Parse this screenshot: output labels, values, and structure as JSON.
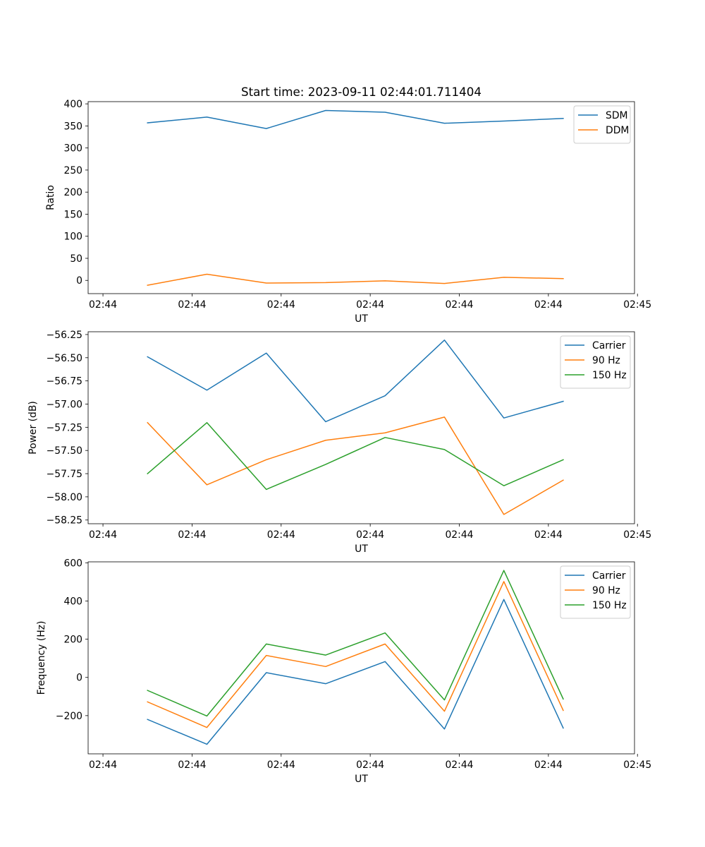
{
  "chart_data": [
    {
      "type": "line",
      "title": "Start time: 2023-09-11 02:44:01.711404",
      "xlabel": "UT",
      "ylabel": "Ratio",
      "xlim": [
        0,
        9.2
      ],
      "ylim": [
        -30,
        405
      ],
      "x": [
        1,
        2,
        3,
        4,
        5,
        6,
        7,
        8
      ],
      "xticks": [
        0.25,
        1.75,
        3.25,
        4.75,
        6.25,
        7.75,
        9.25
      ],
      "xtick_labels": [
        "02:44",
        "02:44",
        "02:44",
        "02:44",
        "02:44",
        "02:44",
        "02:45"
      ],
      "yticks": [
        0,
        50,
        100,
        150,
        200,
        250,
        300,
        350,
        400
      ],
      "ytick_labels": [
        "0",
        "50",
        "100",
        "150",
        "200",
        "250",
        "300",
        "350",
        "400"
      ],
      "legend": "top-right",
      "series": [
        {
          "name": "SDM",
          "color": "#1f77b4",
          "values": [
            357,
            370,
            344,
            385,
            381,
            356,
            361,
            367
          ]
        },
        {
          "name": "DDM",
          "color": "#ff7f0e",
          "values": [
            -11,
            14,
            -6,
            -5,
            -1,
            -7,
            7,
            4
          ]
        }
      ]
    },
    {
      "type": "line",
      "title": "",
      "xlabel": "UT",
      "ylabel": "Power (dB)",
      "xlim": [
        0,
        9.2
      ],
      "ylim": [
        -58.29,
        -56.22
      ],
      "x": [
        1,
        2,
        3,
        4,
        5,
        6,
        7,
        8
      ],
      "xticks": [
        0.25,
        1.75,
        3.25,
        4.75,
        6.25,
        7.75,
        9.25
      ],
      "xtick_labels": [
        "02:44",
        "02:44",
        "02:44",
        "02:44",
        "02:44",
        "02:44",
        "02:45"
      ],
      "yticks": [
        -58.25,
        -58.0,
        -57.75,
        -57.5,
        -57.25,
        -57.0,
        -56.75,
        -56.5,
        -56.25
      ],
      "ytick_labels": [
        "−58.25",
        "−58.00",
        "−57.75",
        "−57.50",
        "−57.25",
        "−57.00",
        "−56.75",
        "−56.50",
        "−56.25"
      ],
      "legend": "top-right",
      "series": [
        {
          "name": "Carrier",
          "color": "#1f77b4",
          "values": [
            -56.49,
            -56.85,
            -56.45,
            -57.19,
            -56.91,
            -56.31,
            -57.15,
            -56.97
          ]
        },
        {
          "name": "90 Hz",
          "color": "#ff7f0e",
          "values": [
            -57.2,
            -57.87,
            -57.6,
            -57.39,
            -57.31,
            -57.14,
            -58.19,
            -57.82
          ]
        },
        {
          "name": "150 Hz",
          "color": "#2ca02c",
          "values": [
            -57.75,
            -57.2,
            -57.92,
            -57.65,
            -57.36,
            -57.49,
            -57.88,
            -57.6
          ]
        }
      ]
    },
    {
      "type": "line",
      "title": "",
      "xlabel": "UT",
      "ylabel": "Frequency (Hz)",
      "xlim": [
        0,
        9.2
      ],
      "ylim": [
        -400,
        605
      ],
      "x": [
        1,
        2,
        3,
        4,
        5,
        6,
        7,
        8
      ],
      "xticks": [
        0.25,
        1.75,
        3.25,
        4.75,
        6.25,
        7.75,
        9.25
      ],
      "xtick_labels": [
        "02:44",
        "02:44",
        "02:44",
        "02:44",
        "02:44",
        "02:44",
        "02:45"
      ],
      "yticks": [
        -200,
        0,
        200,
        400,
        600
      ],
      "ytick_labels": [
        "−200",
        "0",
        "200",
        "400",
        "600"
      ],
      "legend": "top-right",
      "series": [
        {
          "name": "Carrier",
          "color": "#1f77b4",
          "values": [
            -220,
            -350,
            25,
            -33,
            83,
            -270,
            408,
            -265
          ]
        },
        {
          "name": "90 Hz",
          "color": "#ff7f0e",
          "values": [
            -128,
            -262,
            115,
            57,
            175,
            -177,
            502,
            -173
          ]
        },
        {
          "name": "150 Hz",
          "color": "#2ca02c",
          "values": [
            -68,
            -202,
            175,
            117,
            233,
            -118,
            560,
            -113
          ]
        }
      ]
    }
  ]
}
